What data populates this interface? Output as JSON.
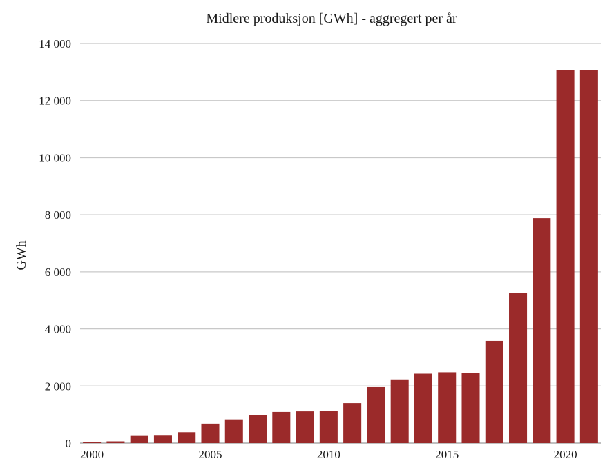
{
  "chart_data": {
    "type": "bar",
    "title": "Midlere produksjon [GWh] - aggregert per år",
    "ylabel": "GWh",
    "xlabel": "",
    "categories": [
      "2000",
      "2001",
      "2002",
      "2003",
      "2004",
      "2005",
      "2006",
      "2007",
      "2008",
      "2009",
      "2010",
      "2011",
      "2012",
      "2013",
      "2014",
      "2015",
      "2016",
      "2017",
      "2018",
      "2019",
      "2020",
      "2021"
    ],
    "values": [
      30,
      60,
      250,
      260,
      380,
      680,
      830,
      970,
      1090,
      1110,
      1130,
      1400,
      1960,
      2230,
      2430,
      2480,
      2450,
      3580,
      5270,
      7880,
      13080,
      13080
    ],
    "ylim": [
      0,
      14000
    ],
    "yticks": [
      0,
      2000,
      4000,
      6000,
      8000,
      10000,
      12000,
      14000
    ],
    "ytick_labels": [
      "0",
      "2 000",
      "4 000",
      "6 000",
      "8 000",
      "10 000",
      "12 000",
      "14 000"
    ],
    "xtick_labels": [
      "2000",
      "2005",
      "2010",
      "2015",
      "2020"
    ],
    "grid": true,
    "legend": "none",
    "bar_color": "#9b2a2a"
  }
}
